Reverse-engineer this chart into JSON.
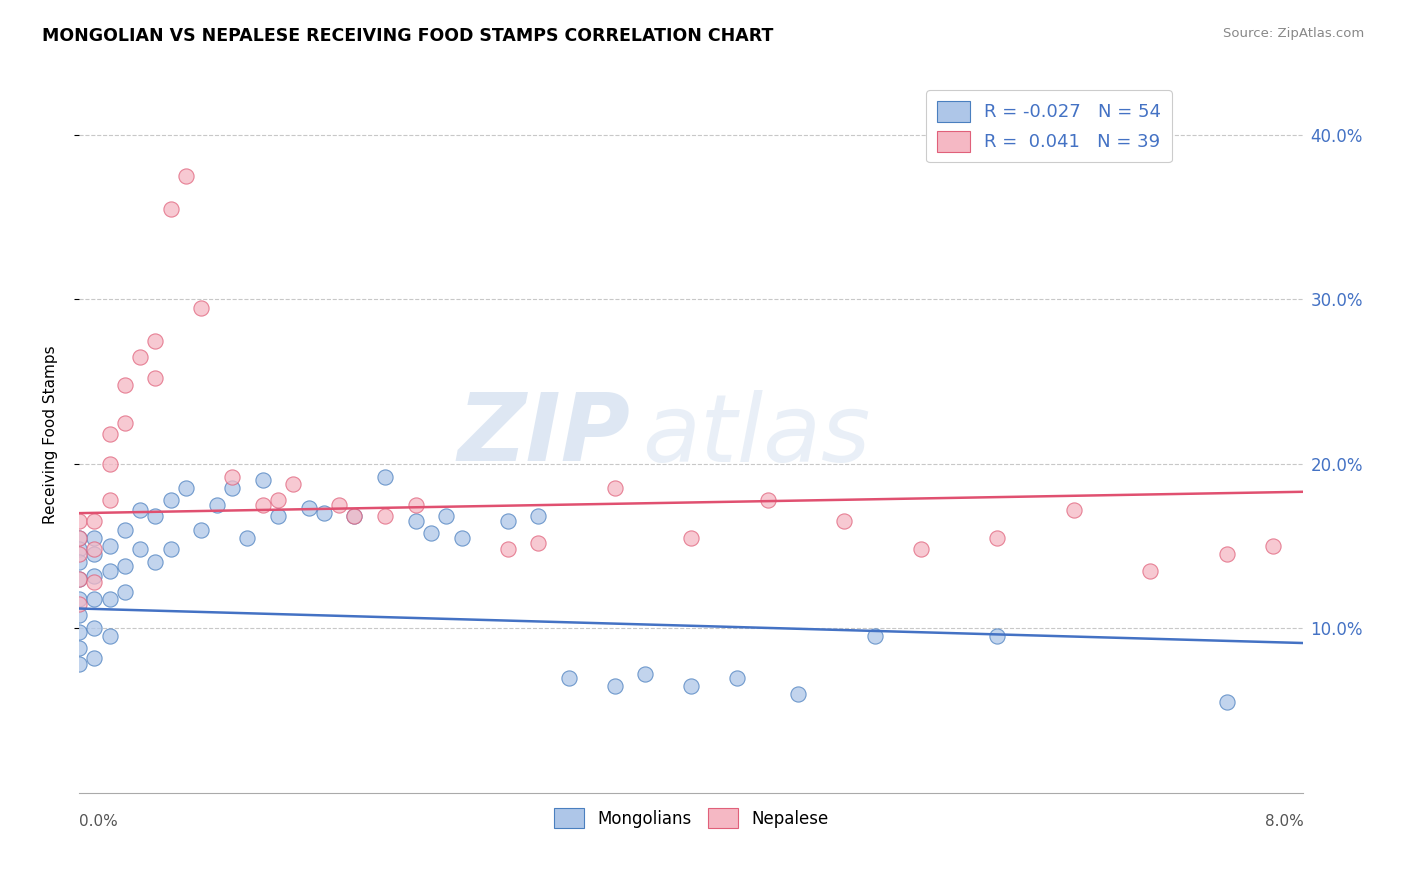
{
  "title": "MONGOLIAN VS NEPALESE RECEIVING FOOD STAMPS CORRELATION CHART",
  "source": "Source: ZipAtlas.com",
  "ylabel": "Receiving Food Stamps",
  "ytick_labels": [
    "10.0%",
    "20.0%",
    "30.0%",
    "40.0%"
  ],
  "ytick_vals": [
    0.1,
    0.2,
    0.3,
    0.4
  ],
  "xlim": [
    0.0,
    0.08
  ],
  "ylim": [
    0.0,
    0.435
  ],
  "mongolian_color": "#aec6e8",
  "nepalese_color": "#f5b8c4",
  "mongolian_edge_color": "#4a7fbf",
  "nepalese_edge_color": "#e0607a",
  "mongolian_line_color": "#4472c4",
  "nepalese_line_color": "#e05070",
  "legend_R_mongolian": "-0.027",
  "legend_N_mongolian": "54",
  "legend_R_nepalese": "0.041",
  "legend_N_nepalese": "39",
  "watermark_zip": "ZIP",
  "watermark_atlas": "atlas",
  "mongo_line_x": [
    0.0,
    0.08
  ],
  "mongo_line_y": [
    0.112,
    0.091
  ],
  "nep_line_x": [
    0.0,
    0.08
  ],
  "nep_line_y": [
    0.17,
    0.183
  ],
  "mongolian_points_x": [
    0.0,
    0.0,
    0.0,
    0.0,
    0.0,
    0.0,
    0.0,
    0.0,
    0.0,
    0.001,
    0.001,
    0.001,
    0.001,
    0.001,
    0.001,
    0.002,
    0.002,
    0.002,
    0.002,
    0.003,
    0.003,
    0.003,
    0.004,
    0.004,
    0.005,
    0.005,
    0.006,
    0.006,
    0.007,
    0.008,
    0.009,
    0.01,
    0.011,
    0.012,
    0.013,
    0.015,
    0.016,
    0.018,
    0.02,
    0.022,
    0.023,
    0.024,
    0.025,
    0.028,
    0.03,
    0.032,
    0.035,
    0.037,
    0.04,
    0.043,
    0.047,
    0.052,
    0.06,
    0.075
  ],
  "mongolian_points_y": [
    0.155,
    0.148,
    0.14,
    0.13,
    0.118,
    0.108,
    0.098,
    0.088,
    0.078,
    0.155,
    0.145,
    0.132,
    0.118,
    0.1,
    0.082,
    0.15,
    0.135,
    0.118,
    0.095,
    0.16,
    0.138,
    0.122,
    0.172,
    0.148,
    0.168,
    0.14,
    0.178,
    0.148,
    0.185,
    0.16,
    0.175,
    0.185,
    0.155,
    0.19,
    0.168,
    0.173,
    0.17,
    0.168,
    0.192,
    0.165,
    0.158,
    0.168,
    0.155,
    0.165,
    0.168,
    0.07,
    0.065,
    0.072,
    0.065,
    0.07,
    0.06,
    0.095,
    0.095,
    0.055
  ],
  "nepalese_points_x": [
    0.0,
    0.0,
    0.0,
    0.0,
    0.0,
    0.001,
    0.001,
    0.001,
    0.002,
    0.002,
    0.002,
    0.003,
    0.003,
    0.004,
    0.005,
    0.005,
    0.006,
    0.007,
    0.008,
    0.01,
    0.012,
    0.013,
    0.014,
    0.017,
    0.018,
    0.02,
    0.022,
    0.028,
    0.03,
    0.035,
    0.04,
    0.045,
    0.05,
    0.055,
    0.06,
    0.065,
    0.07,
    0.075,
    0.078
  ],
  "nepalese_points_y": [
    0.165,
    0.155,
    0.145,
    0.13,
    0.115,
    0.165,
    0.148,
    0.128,
    0.218,
    0.2,
    0.178,
    0.248,
    0.225,
    0.265,
    0.275,
    0.252,
    0.355,
    0.375,
    0.295,
    0.192,
    0.175,
    0.178,
    0.188,
    0.175,
    0.168,
    0.168,
    0.175,
    0.148,
    0.152,
    0.185,
    0.155,
    0.178,
    0.165,
    0.148,
    0.155,
    0.172,
    0.135,
    0.145,
    0.15
  ]
}
